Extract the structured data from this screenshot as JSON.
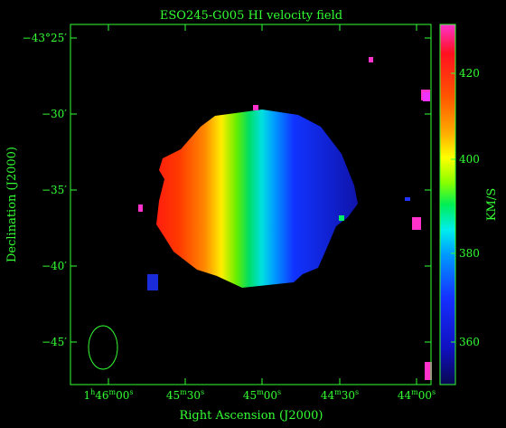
{
  "chart_data": {
    "type": "heatmap",
    "title": "ESO245-G005   HI velocity field",
    "xlabel": "Right Ascension (J2000)",
    "ylabel": "Declination (J2000)",
    "colorbar_label": "KM/S",
    "x_ticks": [
      {
        "h": "1",
        "hu": "h",
        "m": "46",
        "mu": "m",
        "s": "00",
        "su": "s"
      },
      {
        "m": "45",
        "mu": "m",
        "s": "30",
        "su": "s"
      },
      {
        "m": "45",
        "mu": "m",
        "s": "00",
        "su": "s"
      },
      {
        "m": "44",
        "mu": "m",
        "s": "30",
        "su": "s"
      },
      {
        "m": "44",
        "mu": "m",
        "s": "00",
        "su": "s"
      }
    ],
    "y_ticks": [
      "−43°25′",
      "−30′",
      "−35′",
      "−40′",
      "−45′"
    ],
    "colorbar_ticks": [
      "420",
      "400",
      "380",
      "360"
    ],
    "colorbar_range_kms": [
      349,
      430
    ],
    "colors": {
      "axes": "#33ff33",
      "background": "#000000"
    }
  }
}
